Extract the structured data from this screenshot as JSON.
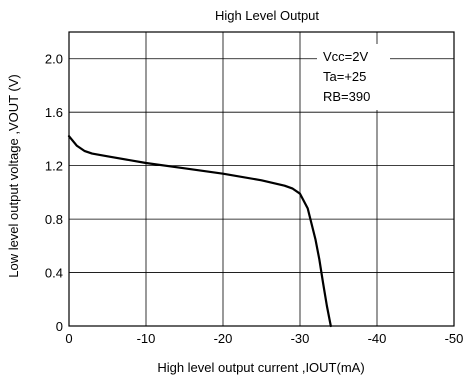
{
  "chart_data": {
    "type": "line",
    "title": "High Level Output",
    "xlabel": "High level output current  ,IOUT(mA)",
    "ylabel": "Low level output voltage  ,VOUT (V)",
    "xlim": [
      0,
      -50
    ],
    "ylim": [
      0,
      2.2
    ],
    "x_ticks": [
      0,
      -10,
      -20,
      -30,
      -40,
      -50
    ],
    "x_tick_labels": [
      "0",
      "-10",
      "-20",
      "-30",
      "-40",
      "-50"
    ],
    "y_ticks": [
      0,
      0.4,
      0.8,
      1.2,
      1.6,
      2.0
    ],
    "y_tick_labels": [
      "0",
      "0.4",
      "0.8",
      "1.2",
      "1.6",
      "2.0"
    ],
    "grid": true,
    "annotations": [
      "Vcc=2V",
      "Ta=+25",
      "RB=390"
    ],
    "series": [
      {
        "x": [
          0,
          -1,
          -2,
          -3,
          -5,
          -10,
          -15,
          -20,
          -25,
          -28,
          -29,
          -30,
          -31,
          -32,
          -32.5,
          -33,
          -33.5,
          -34
        ],
        "y": [
          1.42,
          1.35,
          1.31,
          1.29,
          1.27,
          1.22,
          1.18,
          1.14,
          1.09,
          1.05,
          1.03,
          0.99,
          0.88,
          0.65,
          0.5,
          0.32,
          0.15,
          0.0
        ]
      }
    ]
  }
}
